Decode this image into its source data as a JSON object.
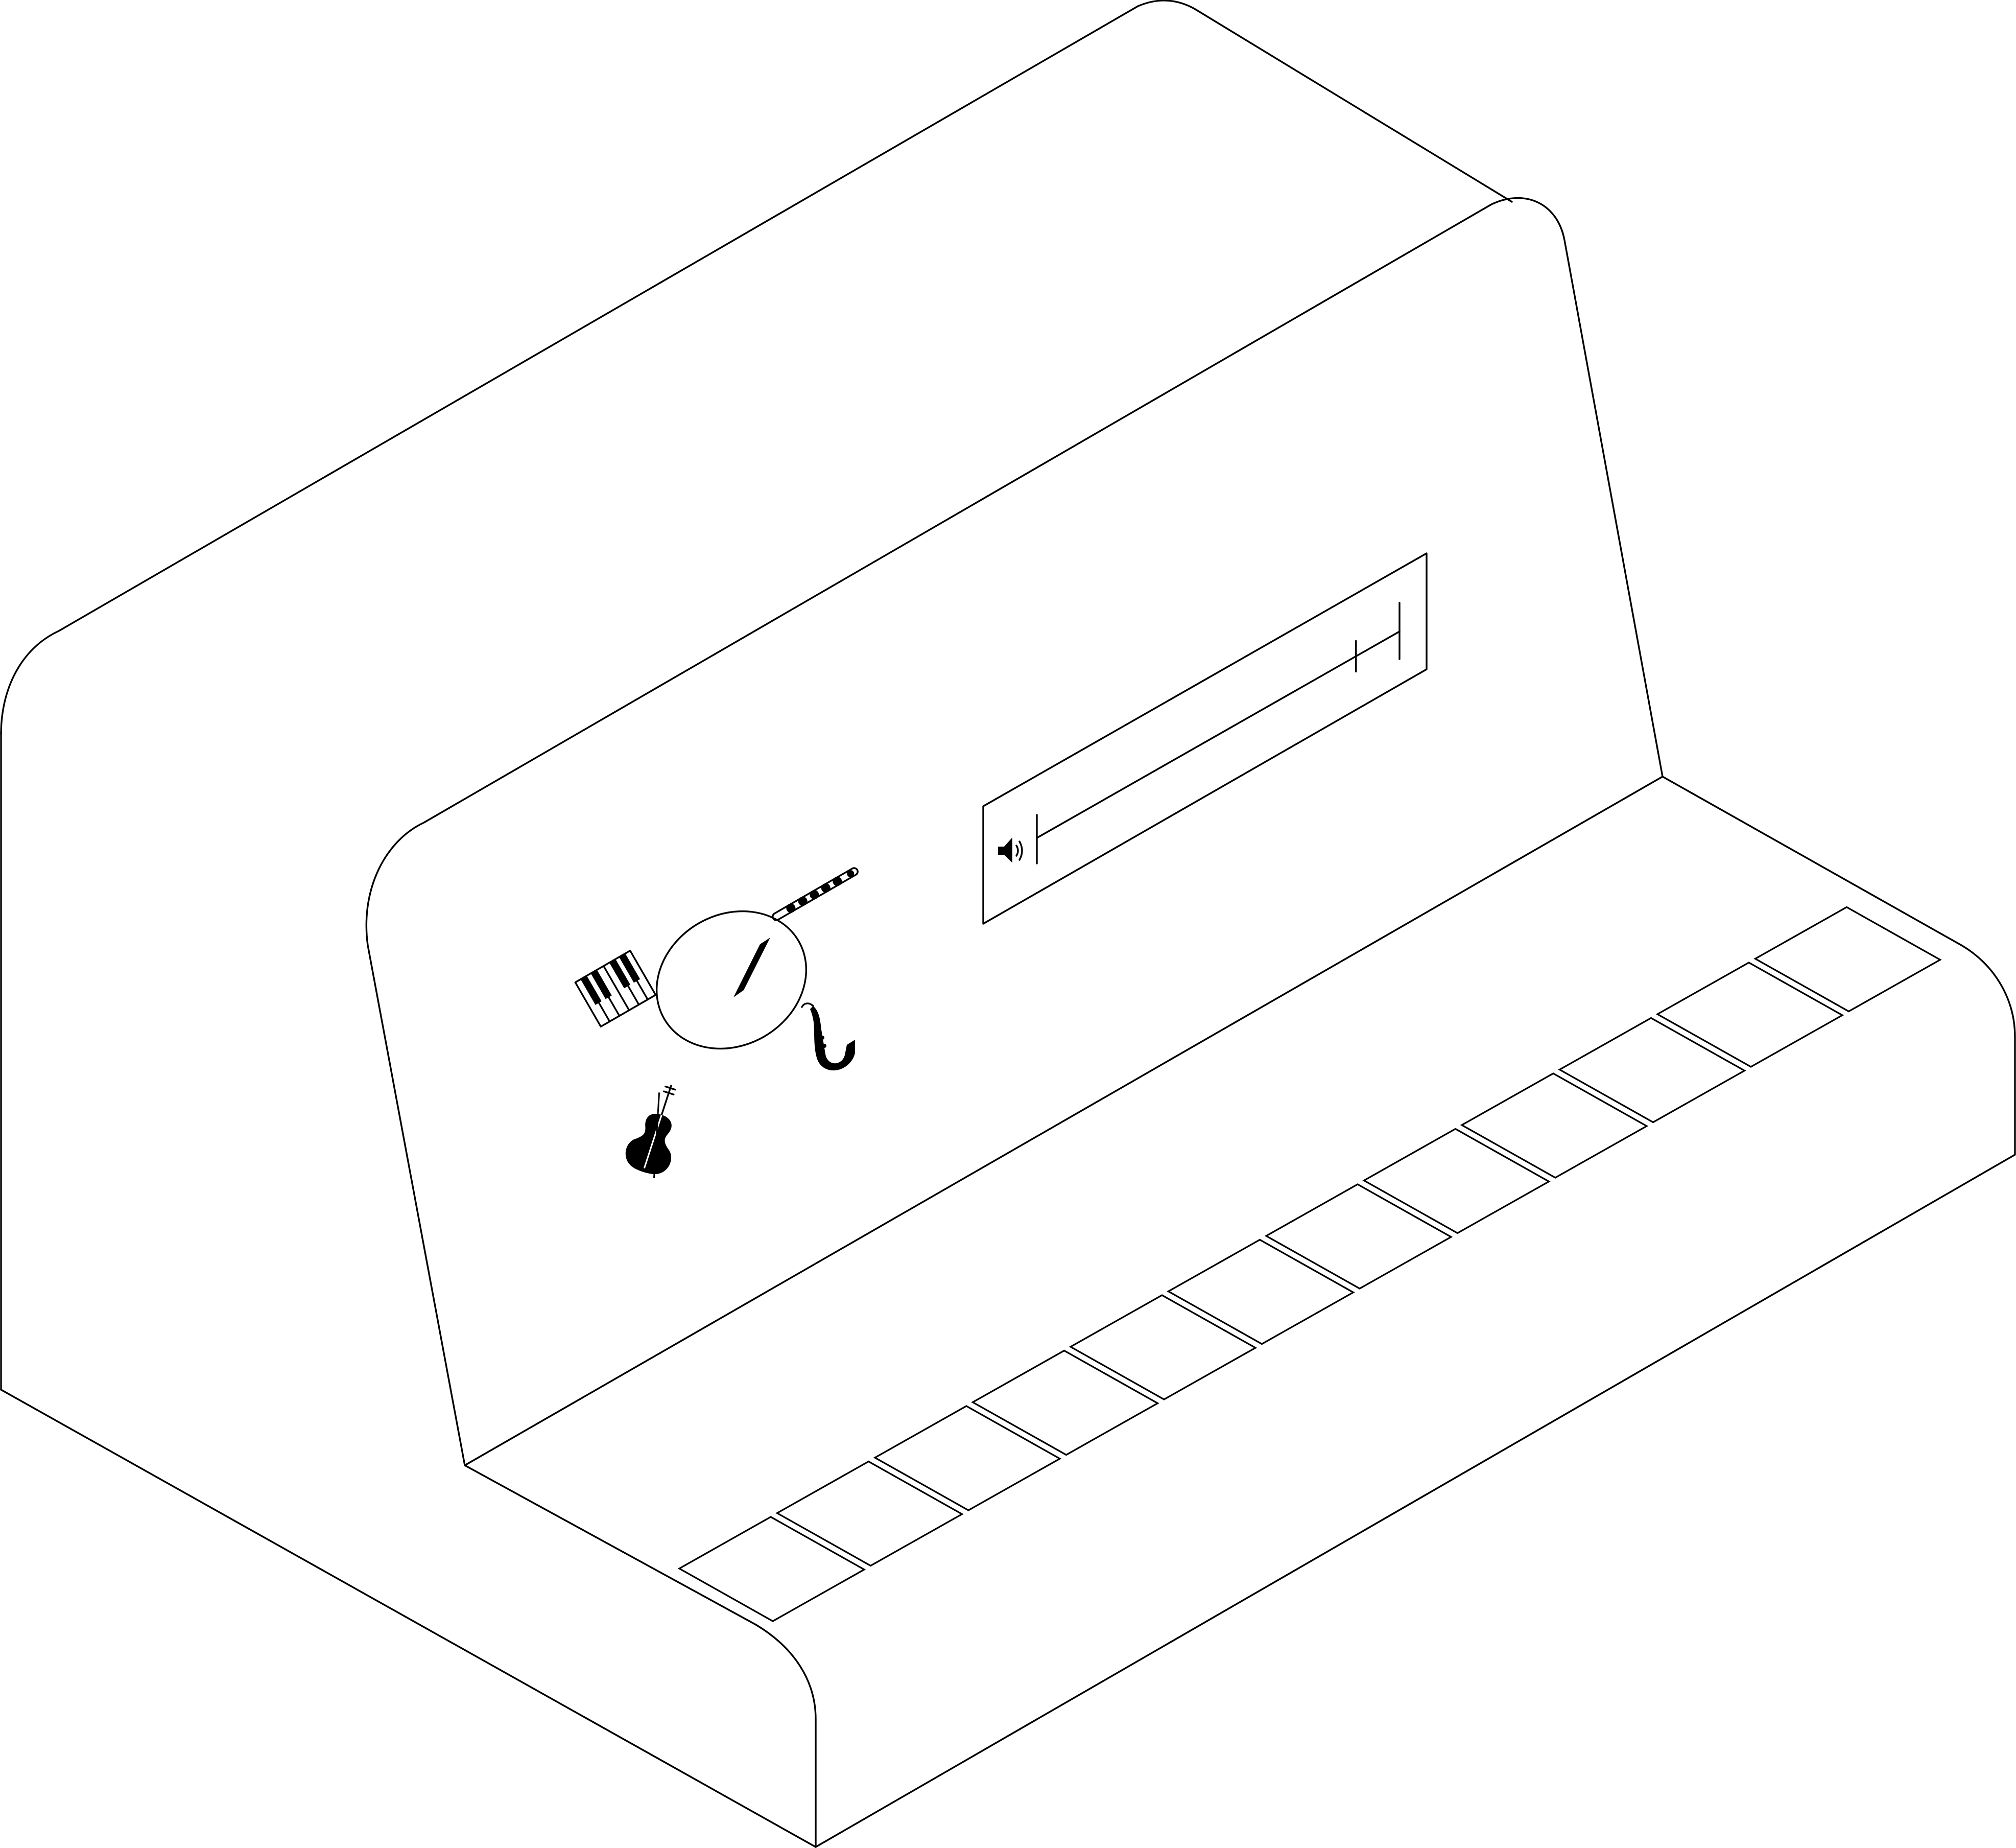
{
  "device": {
    "kind": "electronic-keyboard-instrument",
    "line_color": "#000000",
    "background_color": "#ffffff"
  },
  "keys": {
    "count": 12
  },
  "instrument_selector": {
    "options": [
      {
        "id": "piano",
        "icon": "piano-keys-icon"
      },
      {
        "id": "flute",
        "icon": "flute-icon"
      },
      {
        "id": "saxophone",
        "icon": "saxophone-icon"
      },
      {
        "id": "violin",
        "icon": "violin-icon"
      }
    ],
    "pointer_target": "flute"
  },
  "volume": {
    "icon": "speaker-icon",
    "level": 0.88
  }
}
